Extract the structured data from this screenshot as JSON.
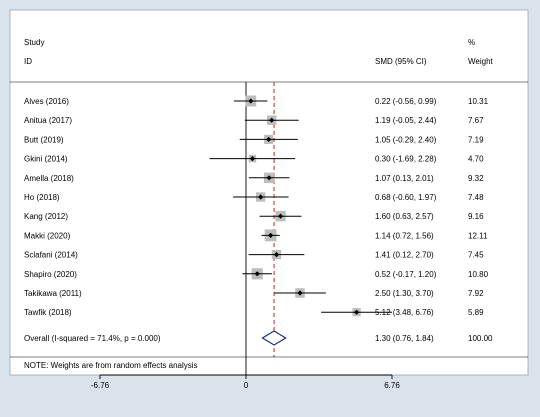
{
  "chart_data": {
    "type": "forest",
    "headers": {
      "study_line1": "Study",
      "study_line2": "ID",
      "effect": "SMD (95% CI)",
      "weight_line1": "%",
      "weight_line2": "Weight"
    },
    "xlim": [
      -6.76,
      6.76
    ],
    "xticks": [
      "-6.76",
      "0",
      "6.76"
    ],
    "reference_line": 0,
    "overall_line": 1.3,
    "studies": [
      {
        "label": "Alves (2016)",
        "est": 0.22,
        "lo": -0.56,
        "hi": 0.99,
        "ci_text": "0.22 (-0.56, 0.99)",
        "weight": "10.31",
        "w": 10.31
      },
      {
        "label": "Anitua (2017)",
        "est": 1.19,
        "lo": -0.05,
        "hi": 2.44,
        "ci_text": "1.19 (-0.05, 2.44)",
        "weight": "7.67",
        "w": 7.67
      },
      {
        "label": "Butt (2019)",
        "est": 1.05,
        "lo": -0.29,
        "hi": 2.4,
        "ci_text": "1.05 (-0.29, 2.40)",
        "weight": "7.19",
        "w": 7.19
      },
      {
        "label": "Gkini (2014)",
        "est": 0.3,
        "lo": -1.69,
        "hi": 2.28,
        "ci_text": "0.30 (-1.69, 2.28)",
        "weight": "4.70",
        "w": 4.7
      },
      {
        "label": "Amella (2018)",
        "est": 1.07,
        "lo": 0.13,
        "hi": 2.01,
        "ci_text": "1.07 (0.13, 2.01)",
        "weight": "9.32",
        "w": 9.32
      },
      {
        "label": "Ho (2018)",
        "est": 0.68,
        "lo": -0.6,
        "hi": 1.97,
        "ci_text": "0.68 (-0.60, 1.97)",
        "weight": "7.48",
        "w": 7.48
      },
      {
        "label": "Kang  (2012)",
        "est": 1.6,
        "lo": 0.63,
        "hi": 2.57,
        "ci_text": "1.60 (0.63, 2.57)",
        "weight": "9.16",
        "w": 9.16
      },
      {
        "label": "Makki (2020)",
        "est": 1.14,
        "lo": 0.72,
        "hi": 1.56,
        "ci_text": "1.14 (0.72, 1.56)",
        "weight": "12.11",
        "w": 12.11
      },
      {
        "label": "Sclafani (2014)",
        "est": 1.41,
        "lo": 0.12,
        "hi": 2.7,
        "ci_text": "1.41 (0.12, 2.70)",
        "weight": "7.45",
        "w": 7.45
      },
      {
        "label": "Shapiro (2020)",
        "est": 0.52,
        "lo": -0.17,
        "hi": 1.2,
        "ci_text": "0.52 (-0.17, 1.20)",
        "weight": "10.80",
        "w": 10.8
      },
      {
        "label": "Takikawa  (2011)",
        "est": 2.5,
        "lo": 1.3,
        "hi": 3.7,
        "ci_text": "2.50 (1.30, 3.70)",
        "weight": "7.92",
        "w": 7.92
      },
      {
        "label": "Tawfik (2018)",
        "est": 5.12,
        "lo": 3.48,
        "hi": 6.76,
        "ci_text": "5.12 (3.48, 6.76)",
        "weight": "5.89",
        "w": 5.89
      }
    ],
    "overall": {
      "label": "Overall  (I-squared = 71.4%, p = 0.000)",
      "est": 1.3,
      "lo": 0.76,
      "hi": 1.84,
      "ci_text": "1.30 (0.76, 1.84)",
      "weight": "100.00"
    },
    "note": "NOTE: Weights are from random effects analysis",
    "colors": {
      "background": "#d9e3ec",
      "panel": "#ffffff",
      "overall_line": "#c0392b",
      "diamond": "#1a237e",
      "weight_box": "#bdbdbd"
    }
  }
}
